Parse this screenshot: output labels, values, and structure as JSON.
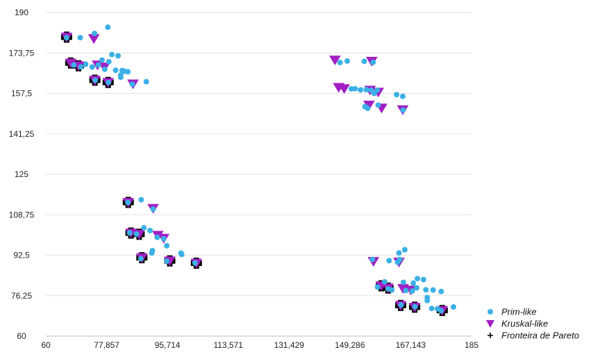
{
  "chart_data": {
    "type": "scatter",
    "title": "",
    "xlabel": "",
    "ylabel": "",
    "xlim": [
      60,
      185
    ],
    "ylim": [
      60,
      190
    ],
    "x_ticks": [
      60,
      77.857,
      95.714,
      113.571,
      131.429,
      149.286,
      167.143,
      185
    ],
    "x_tick_labels": [
      "60",
      "77,857",
      "95,714",
      "113,571",
      "131,429",
      "149,286",
      "167,143",
      "185"
    ],
    "y_ticks": [
      60,
      76.25,
      92.5,
      108.75,
      125,
      141.25,
      157.5,
      173.75,
      190
    ],
    "y_tick_labels": [
      "60",
      "76,25",
      "92,5",
      "108,75",
      "125",
      "141,25",
      "157,5",
      "173,75",
      "190"
    ],
    "grid": "horizontal",
    "legend_position": "bottom-right",
    "series": [
      {
        "name": "Prim-like",
        "marker": "circle",
        "color": "#3bb0e6",
        "points": [
          [
            66.1,
            179.9
          ],
          [
            70.1,
            179.9
          ],
          [
            74.3,
            181.6
          ],
          [
            78.2,
            184.1
          ],
          [
            76.5,
            170.9
          ],
          [
            78.5,
            170.2
          ],
          [
            79.4,
            173.1
          ],
          [
            81.2,
            172.6
          ],
          [
            68.2,
            168.9
          ],
          [
            70.3,
            168.1
          ],
          [
            71.7,
            169.2
          ],
          [
            73.6,
            168.1
          ],
          [
            75.4,
            168.9
          ],
          [
            77.3,
            167.2
          ],
          [
            80.5,
            166.8
          ],
          [
            82.4,
            166.7
          ],
          [
            83.1,
            166.4
          ],
          [
            84.1,
            166.2
          ],
          [
            82.0,
            164.0
          ],
          [
            82.0,
            164.9
          ],
          [
            74.5,
            162.8
          ],
          [
            78.4,
            161.9
          ],
          [
            85.4,
            161.2
          ],
          [
            89.5,
            162.2
          ],
          [
            84.1,
            113.7
          ],
          [
            88.0,
            114.8
          ],
          [
            91.5,
            111.0
          ],
          [
            84.6,
            101.5
          ],
          [
            86.6,
            101.0
          ],
          [
            88.8,
            103.5
          ],
          [
            90.6,
            102.4
          ],
          [
            92.7,
            99.7
          ],
          [
            94.6,
            99.1
          ],
          [
            95.5,
            96.3
          ],
          [
            91.3,
            94.3
          ],
          [
            91.1,
            93.4
          ],
          [
            99.9,
            92.8
          ],
          [
            99.7,
            93.3
          ],
          [
            87.9,
            91.1
          ],
          [
            95.5,
            90.1
          ],
          [
            103.8,
            89.4
          ],
          [
            148.5,
            170.5
          ],
          [
            153.5,
            170.4
          ],
          [
            156.1,
            170.0
          ],
          [
            146.4,
            169.9
          ],
          [
            149.7,
            159.3
          ],
          [
            150.8,
            159.4
          ],
          [
            152.4,
            158.9
          ],
          [
            154.1,
            159.0
          ],
          [
            155.5,
            158.8
          ],
          [
            157.3,
            158.8
          ],
          [
            156.4,
            157.5
          ],
          [
            163.0,
            157.0
          ],
          [
            164.8,
            156.3
          ],
          [
            164.9,
            150.8
          ],
          [
            157.6,
            152.8
          ],
          [
            153.7,
            152.2
          ],
          [
            154.5,
            151.5
          ],
          [
            155.9,
            90.8
          ],
          [
            160.8,
            90.3
          ],
          [
            163.9,
            90.8
          ],
          [
            165.4,
            94.7
          ],
          [
            163.7,
            93.4
          ],
          [
            163.3,
            89.6
          ],
          [
            159.5,
            81.8
          ],
          [
            165.0,
            81.6
          ],
          [
            167.9,
            81.3
          ],
          [
            169.1,
            83.1
          ],
          [
            170.9,
            82.7
          ],
          [
            168.9,
            79.4
          ],
          [
            171.6,
            78.6
          ],
          [
            173.7,
            78.5
          ],
          [
            176.1,
            77.9
          ],
          [
            157.4,
            79.7
          ],
          [
            160.5,
            79.0
          ],
          [
            161.6,
            78.5
          ],
          [
            165.7,
            78.3
          ],
          [
            167.6,
            78.1
          ],
          [
            172.0,
            75.5
          ],
          [
            172.0,
            74.3
          ],
          [
            164.3,
            72.5
          ],
          [
            168.4,
            71.8
          ],
          [
            173.3,
            71.1
          ],
          [
            176.0,
            70.2
          ],
          [
            179.7,
            71.7
          ],
          [
            175.0,
            71.0
          ]
        ]
      },
      {
        "name": "Kruskal-like",
        "marker": "triangle-down",
        "color": "#a21fc4",
        "points": [
          [
            66.1,
            180.1
          ],
          [
            74.1,
            179.5
          ],
          [
            67.3,
            169.7
          ],
          [
            69.6,
            168.6
          ],
          [
            75.2,
            168.9
          ],
          [
            77.2,
            168.1
          ],
          [
            74.4,
            162.8
          ],
          [
            78.3,
            161.9
          ],
          [
            85.6,
            161.3
          ],
          [
            84.2,
            113.7
          ],
          [
            91.5,
            111.3
          ],
          [
            85.0,
            101.4
          ],
          [
            87.4,
            100.9
          ],
          [
            92.9,
            100.5
          ],
          [
            94.6,
            99.3
          ],
          [
            88.2,
            91.5
          ],
          [
            96.4,
            90.2
          ],
          [
            104.2,
            89.3
          ],
          [
            144.9,
            170.9
          ],
          [
            155.7,
            170.4
          ],
          [
            146.0,
            159.9
          ],
          [
            147.6,
            159.4
          ],
          [
            155.2,
            158.8
          ],
          [
            157.6,
            158.0
          ],
          [
            154.9,
            152.8
          ],
          [
            158.6,
            151.6
          ],
          [
            164.8,
            150.9
          ],
          [
            156.2,
            90.0
          ],
          [
            163.7,
            89.7
          ],
          [
            158.5,
            80.2
          ],
          [
            160.5,
            79.3
          ],
          [
            164.9,
            79.1
          ],
          [
            167.2,
            78.5
          ],
          [
            164.2,
            72.3
          ],
          [
            168.3,
            71.6
          ],
          [
            176.4,
            70.3
          ]
        ]
      },
      {
        "name": "Fronteira de Pareto",
        "marker": "plus",
        "color": "#000000",
        "points": [
          [
            66.1,
            180.1
          ],
          [
            67.3,
            169.7
          ],
          [
            69.6,
            168.6
          ],
          [
            74.4,
            162.8
          ],
          [
            78.3,
            161.9
          ],
          [
            84.2,
            113.7
          ],
          [
            85.0,
            101.4
          ],
          [
            87.4,
            100.9
          ],
          [
            88.2,
            91.5
          ],
          [
            96.4,
            90.2
          ],
          [
            104.2,
            89.3
          ],
          [
            158.5,
            80.2
          ],
          [
            160.5,
            79.3
          ],
          [
            164.2,
            72.3
          ],
          [
            168.3,
            71.6
          ],
          [
            176.4,
            70.3
          ]
        ]
      }
    ]
  }
}
